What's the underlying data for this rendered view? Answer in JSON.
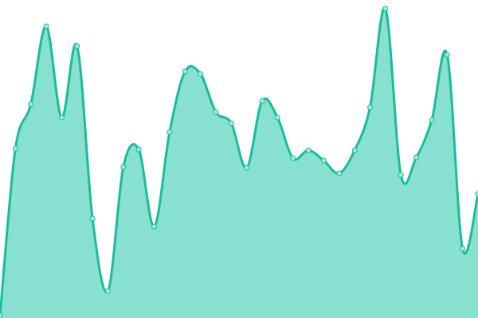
{
  "chart_data": {
    "type": "area",
    "title": "",
    "xlabel": "",
    "ylabel": "",
    "x": [
      0,
      1,
      2,
      3,
      4,
      5,
      6,
      7,
      8,
      9,
      10,
      11,
      12,
      13,
      14,
      15,
      16,
      17,
      18,
      19,
      20,
      21,
      22,
      23,
      24,
      25,
      26,
      27,
      28,
      29,
      30,
      31
    ],
    "values": [
      3,
      213,
      269,
      367,
      252,
      342,
      125,
      34,
      190,
      212,
      115,
      234,
      310,
      307,
      259,
      245,
      189,
      273,
      252,
      201,
      211,
      198,
      182,
      211,
      265,
      389,
      180,
      202,
      249,
      331,
      87,
      156
    ],
    "ylim": [
      0,
      400
    ],
    "grid": false,
    "axes_visible": false,
    "smooth": true,
    "markers": true,
    "colors": {
      "line": "#1abc9c",
      "fill": "#88e0d0",
      "marker_fill": "#a8ebde"
    }
  }
}
